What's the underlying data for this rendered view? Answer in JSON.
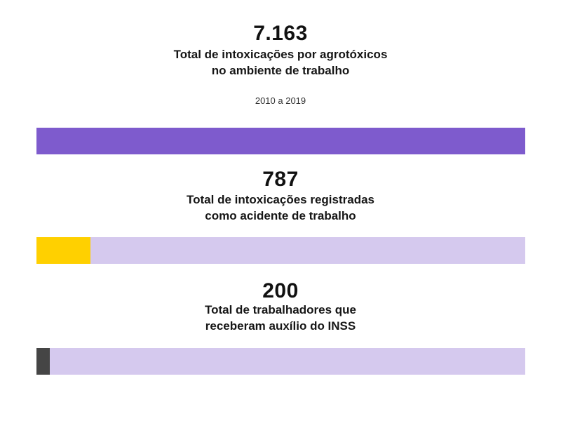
{
  "chart_data": {
    "type": "bar",
    "orientation": "horizontal",
    "period": "2010 a 2019",
    "max_value": 7163,
    "items": [
      {
        "value_label": "7.163",
        "value": 7163,
        "label_lines": [
          "Total de intoxicações por agrotóxicos",
          "no ambiente de trabalho"
        ],
        "fill_color": "#7e5bcd",
        "track_color": "#7e5bcd"
      },
      {
        "value_label": "787",
        "value": 787,
        "label_lines": [
          "Total de intoxicações registradas",
          "como acidente de trabalho"
        ],
        "fill_color": "#ffd000",
        "track_color": "#d5c9ee"
      },
      {
        "value_label": "200",
        "value": 200,
        "label_lines": [
          "Total de trabalhadores que",
          "receberam auxílio do INSS"
        ],
        "fill_color": "#454545",
        "track_color": "#d5c9ee"
      }
    ]
  }
}
